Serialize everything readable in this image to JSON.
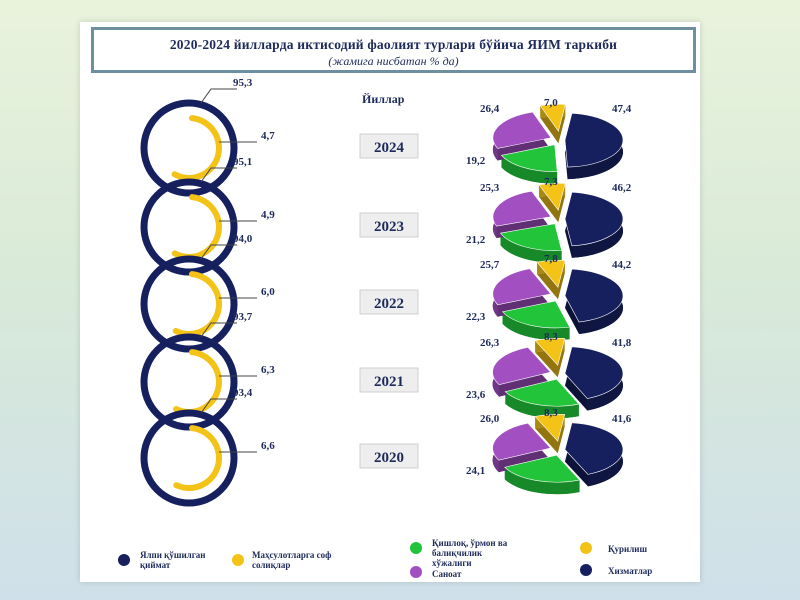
{
  "header": {
    "title": "2020-2024 йилларда иктисодий фаолият турлари бўйича ЯИМ таркиби",
    "subtitle": "(жамига нисбатан % да)"
  },
  "years_label": "Йиллар",
  "colors": {
    "gva": "#16205e",
    "taxes": "#f3c318",
    "agriculture": "#22c43a",
    "industry": "#a24fc1",
    "construction": "#f3c318",
    "services": "#16205e"
  },
  "legend": [
    {
      "key": "gva",
      "label": "Ялпи қўшилган қиймат"
    },
    {
      "key": "taxes",
      "label": "Маҳсулотларга соф солиқлар"
    },
    {
      "key": "agriculture",
      "label": "Қишлоқ, ўрмон ва балиқчилик хўжалиги"
    },
    {
      "key": "construction",
      "label": "Қурилиш"
    },
    {
      "key": "industry",
      "label": "Саноат"
    },
    {
      "key": "services",
      "label": "Хизматлар"
    }
  ],
  "chart_data": [
    {
      "type": "donut",
      "categories": [
        "2024",
        "2023",
        "2022",
        "2021",
        "2020"
      ],
      "series": [
        {
          "name": "Ялпи қўшилган қиймат",
          "values": [
            95.3,
            95.1,
            94.0,
            93.7,
            93.4
          ]
        },
        {
          "name": "Маҳсулотларга соф солиқлар",
          "values": [
            4.7,
            4.9,
            6.0,
            6.3,
            6.6
          ]
        }
      ]
    },
    {
      "type": "pie",
      "categories": [
        "2024",
        "2023",
        "2022",
        "2021",
        "2020"
      ],
      "series": [
        {
          "name": "Хизматлар",
          "values": [
            47.4,
            46.2,
            44.2,
            41.8,
            41.6
          ]
        },
        {
          "name": "Қишлоқ, ўрмон ва балиқчилик хўжалиги",
          "values": [
            19.2,
            21.2,
            22.3,
            23.6,
            24.1
          ]
        },
        {
          "name": "Саноат",
          "values": [
            26.4,
            25.3,
            25.7,
            26.3,
            26.0
          ]
        },
        {
          "name": "Қурилиш",
          "values": [
            7.0,
            7.3,
            7.8,
            8.3,
            8.3
          ]
        }
      ]
    }
  ]
}
